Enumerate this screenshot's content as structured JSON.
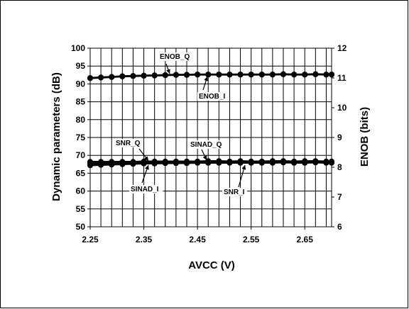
{
  "chart_data": {
    "type": "line",
    "title": "",
    "xlabel": "AVCC (V)",
    "ylabel": "Dynamic parameters (dB)",
    "y2label": "ENOB (bits)",
    "xlim": [
      2.25,
      2.7
    ],
    "ylim": [
      50,
      100
    ],
    "y2lim": [
      6,
      12
    ],
    "grid": true,
    "xticks": [
      "2.25",
      "2.35",
      "2.45",
      "2.55",
      "2.65"
    ],
    "yticks": [
      "50",
      "55",
      "60",
      "65",
      "70",
      "75",
      "80",
      "85",
      "90",
      "95",
      "100"
    ],
    "y2ticks": [
      "6",
      "7",
      "8",
      "9",
      "10",
      "11",
      "12"
    ],
    "x": [
      2.25,
      2.27,
      2.29,
      2.31,
      2.33,
      2.35,
      2.37,
      2.39,
      2.41,
      2.43,
      2.45,
      2.47,
      2.49,
      2.51,
      2.53,
      2.55,
      2.57,
      2.59,
      2.61,
      2.63,
      2.65,
      2.67,
      2.69,
      2.7
    ],
    "series": [
      {
        "name": "ENOB_Q",
        "axis": "right",
        "values": [
          11.0,
          11.02,
          11.04,
          11.06,
          11.07,
          11.08,
          11.09,
          11.1,
          11.11,
          11.11,
          11.12,
          11.12,
          11.12,
          11.12,
          11.12,
          11.12,
          11.12,
          11.12,
          11.13,
          11.12,
          11.12,
          11.13,
          11.12,
          11.12
        ]
      },
      {
        "name": "ENOB_I",
        "axis": "right",
        "values": [
          10.99,
          11.01,
          11.03,
          11.05,
          11.06,
          11.07,
          11.08,
          11.09,
          11.1,
          11.1,
          11.11,
          11.11,
          11.11,
          11.11,
          11.11,
          11.11,
          11.11,
          11.11,
          11.12,
          11.11,
          11.11,
          11.12,
          11.11,
          11.11
        ]
      },
      {
        "name": "SNR_Q",
        "axis": "left",
        "values": [
          68.2,
          68.2,
          68.2,
          68.2,
          68.2,
          68.3,
          68.3,
          68.3,
          68.3,
          68.3,
          68.3,
          68.4,
          68.4,
          68.3,
          68.4,
          68.3,
          68.3,
          68.4,
          68.4,
          68.3,
          68.4,
          68.4,
          68.3,
          68.3
        ]
      },
      {
        "name": "SINAD_Q",
        "axis": "left",
        "values": [
          67.9,
          67.9,
          68.0,
          68.0,
          68.0,
          68.0,
          68.1,
          68.1,
          68.1,
          68.1,
          68.1,
          68.2,
          68.2,
          68.1,
          68.2,
          68.1,
          68.1,
          68.2,
          68.2,
          68.1,
          68.2,
          68.2,
          68.1,
          68.1
        ]
      },
      {
        "name": "SINAD_I",
        "axis": "left",
        "values": [
          67.2,
          67.3,
          67.4,
          67.5,
          67.6,
          67.7,
          67.7,
          67.8,
          67.8,
          67.8,
          67.9,
          67.9,
          67.9,
          67.9,
          67.9,
          67.9,
          67.9,
          67.9,
          68.0,
          67.9,
          67.9,
          68.0,
          67.9,
          67.9
        ]
      },
      {
        "name": "SNR_I",
        "axis": "left",
        "values": [
          67.6,
          67.7,
          67.7,
          67.8,
          67.8,
          67.9,
          67.9,
          67.9,
          68.0,
          68.0,
          68.0,
          68.0,
          68.0,
          68.0,
          68.0,
          68.0,
          68.0,
          68.0,
          68.1,
          68.0,
          68.0,
          68.1,
          68.0,
          68.0
        ]
      }
    ],
    "annotations": [
      {
        "text": "ENOB_Q",
        "x": 2.4,
        "y": 11.1,
        "axis": "right"
      },
      {
        "text": "ENOB_I",
        "x": 2.49,
        "y": 11.1,
        "axis": "right"
      },
      {
        "text": "SNR_Q",
        "x": 2.35,
        "y": 68.2,
        "axis": "left"
      },
      {
        "text": "SINAD_Q",
        "x": 2.48,
        "y": 68.4,
        "axis": "left"
      },
      {
        "text": "SINAD_I",
        "x": 2.36,
        "y": 67.8,
        "axis": "left"
      },
      {
        "text": "SNR_I",
        "x": 2.54,
        "y": 68.0,
        "axis": "left"
      }
    ]
  }
}
